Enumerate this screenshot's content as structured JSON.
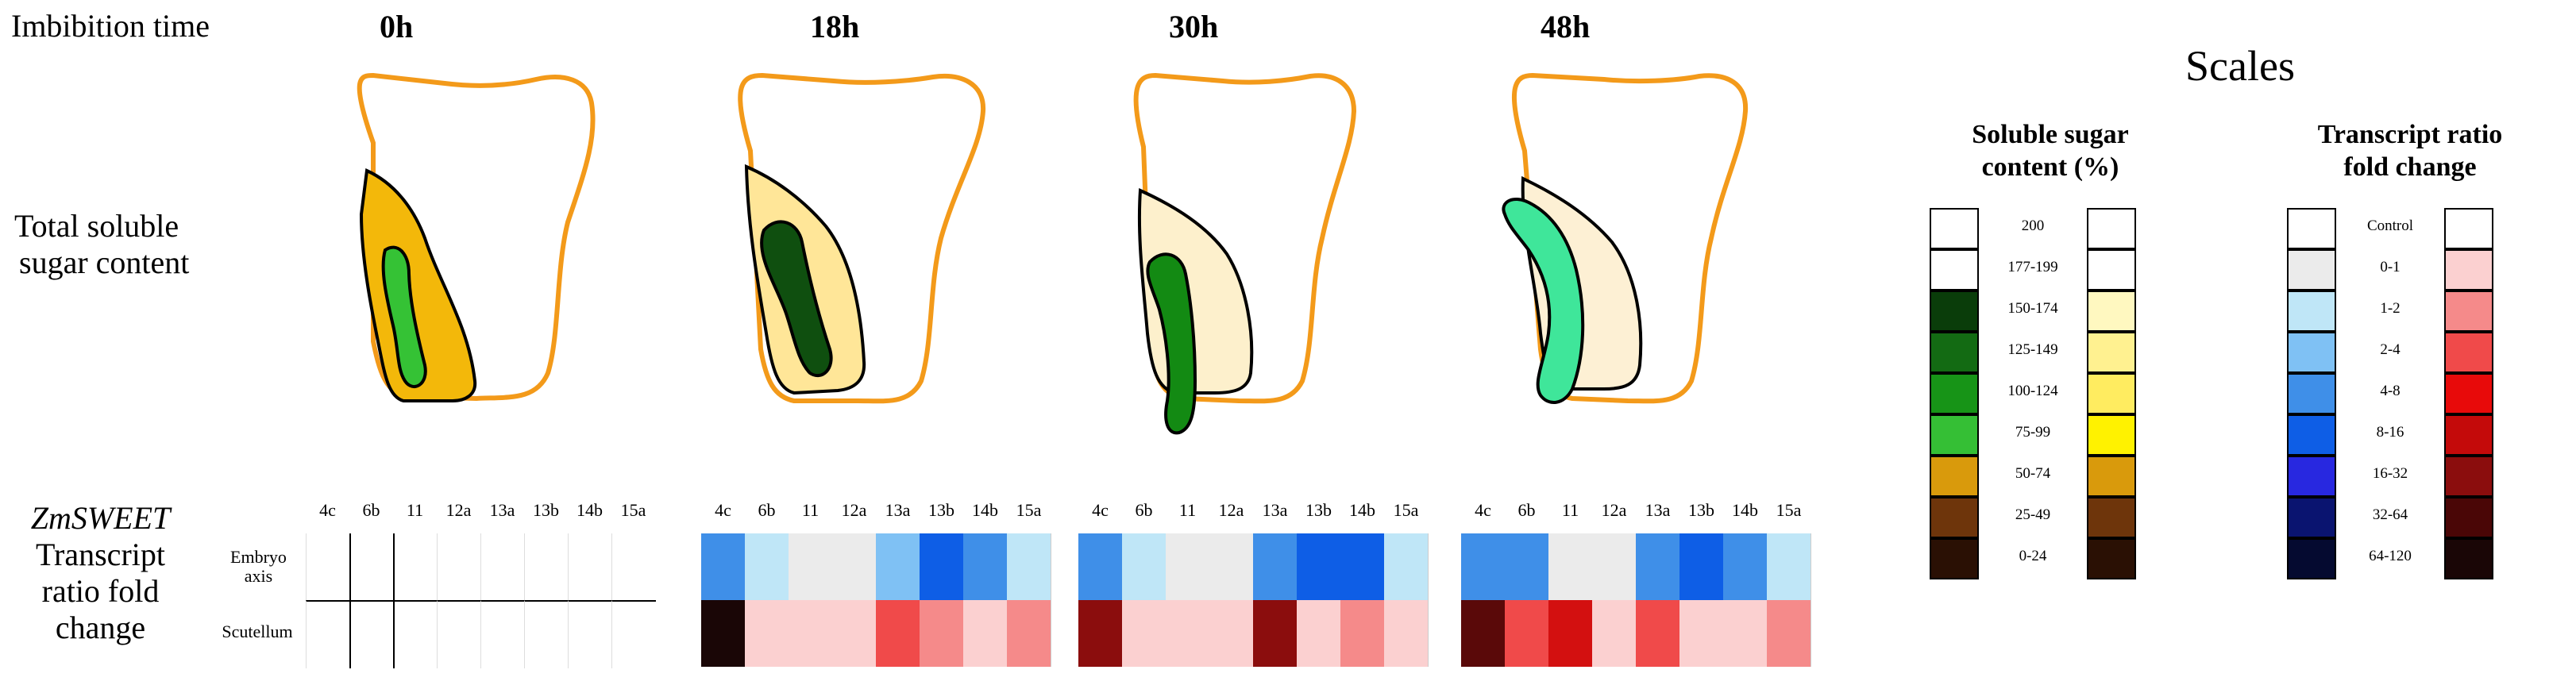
{
  "header": {
    "imbibition_label": "Imbibition time",
    "times": [
      "0h",
      "18h",
      "30h",
      "48h"
    ]
  },
  "row_labels": {
    "sugar_line1": "Total soluble",
    "sugar_line2": "sugar content",
    "gene": "ZmSWEET",
    "transcript_line1": "Transcript",
    "transcript_line2": "ratio fold",
    "transcript_line3": "change"
  },
  "heatmap": {
    "genes": [
      "4c",
      "6b",
      "11",
      "12a",
      "13a",
      "13b",
      "14b",
      "15a"
    ],
    "row_embryo_line1": "Embryo",
    "row_embryo_line2": "axis",
    "row_scutellum": "Scutellum",
    "colors": {
      "18h": {
        "embryo": [
          "#3f8fe8",
          "#bfe6f7",
          "#ebebeb",
          "#ebebeb",
          "#7fc1f4",
          "#0e5ee6",
          "#3f8fe8",
          "#bfe6f7"
        ],
        "scutellum": [
          "#1a0606",
          "#fbd0d0",
          "#fbd0d0",
          "#fbd0d0",
          "#f04a4a",
          "#f58a8a",
          "#fbd0d0",
          "#f58a8a"
        ]
      },
      "30h": {
        "embryo": [
          "#3f8fe8",
          "#bfe6f7",
          "#ebebeb",
          "#ebebeb",
          "#3f8fe8",
          "#0e5ee6",
          "#0e5ee6",
          "#bfe6f7"
        ],
        "scutellum": [
          "#8b0d0d",
          "#fbd0d0",
          "#fbd0d0",
          "#fbd0d0",
          "#8b0d0d",
          "#fbd0d0",
          "#f58a8a",
          "#fbd0d0"
        ]
      },
      "48h": {
        "embryo": [
          "#3f8fe8",
          "#3f8fe8",
          "#ebebeb",
          "#ebebeb",
          "#3f8fe8",
          "#0e5ee6",
          "#3f8fe8",
          "#bfe6f7"
        ],
        "scutellum": [
          "#5a0909",
          "#f04a4a",
          "#d31010",
          "#fbd0d0",
          "#f04a4a",
          "#fbd0d0",
          "#fbd0d0",
          "#f58a8a"
        ]
      }
    }
  },
  "scales": {
    "title": "Scales",
    "sugar_title_line1": "Soluble sugar",
    "sugar_title_line2": "content (%)",
    "sugar_labels": [
      "200",
      "177-199",
      "150-174",
      "125-149",
      "100-124",
      "75-99",
      "50-74",
      "25-49",
      "0-24"
    ],
    "sugar_green_colors": [
      "#ffffff",
      "#ffffff",
      "#0a3d0a",
      "#136b13",
      "#179417",
      "#35bf35",
      "#d99a0c",
      "#6e350b",
      "#2a1004"
    ],
    "sugar_yellow_colors": [
      "#ffffff",
      "#ffffff",
      "#fff8c0",
      "#fff190",
      "#ffec60",
      "#fff200",
      "#d99a0c",
      "#6e350b",
      "#2a1004"
    ],
    "transcript_title_line1": "Transcript ratio",
    "transcript_title_line2": "fold change",
    "transcript_labels": [
      "Control",
      "0-1",
      "1-2",
      "2-4",
      "4-8",
      "8-16",
      "16-32",
      "32-64",
      "64-120"
    ],
    "transcript_blue_colors": [
      "#ffffff",
      "#ebebeb",
      "#bfe6f7",
      "#7fc1f4",
      "#3f8fe8",
      "#0e5ee6",
      "#2828e0",
      "#0a1470",
      "#050a30"
    ],
    "transcript_red_colors": [
      "#ffffff",
      "#fbd0d0",
      "#f58a8a",
      "#f04a4a",
      "#e80a0a",
      "#c40a0a",
      "#8b0d0d",
      "#4a0606",
      "#1a0606"
    ]
  },
  "seed_colors": {
    "outline": "#f39a1a",
    "scutellum_0h": "#f3b80a",
    "axis_0h": "#35c235",
    "scutellum_18h": "#ffe698",
    "axis_18h": "#0f4f0f",
    "scutellum_30h": "#fdf0cc",
    "axis_30h": "#138a13",
    "scutellum_48h": "#fdf0d4",
    "axis_48h": "#3fe69a"
  }
}
